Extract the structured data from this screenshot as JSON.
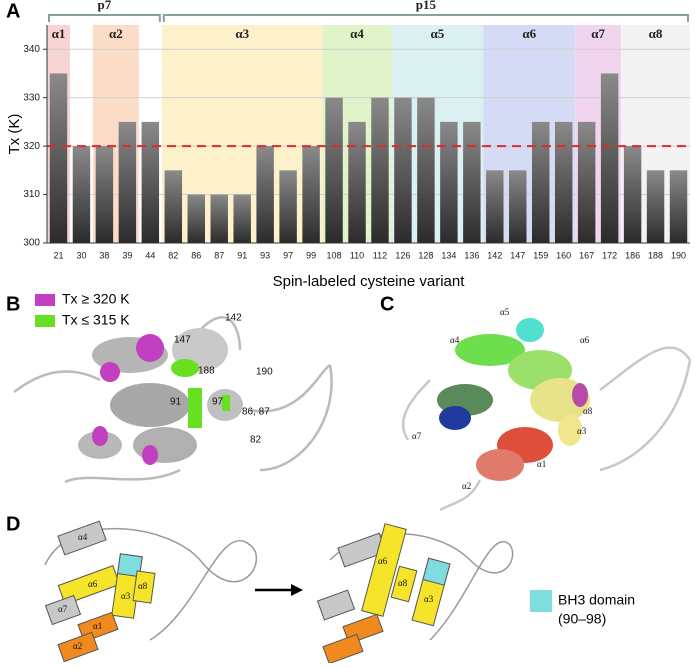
{
  "chart_data": {
    "type": "bar",
    "panel": "A",
    "ylabel": "Tx (K)",
    "xlabel": "Spin-labeled cysteine variant",
    "categories": [
      "21",
      "30",
      "38",
      "39",
      "44",
      "82",
      "86",
      "87",
      "91",
      "93",
      "97",
      "99",
      "108",
      "110",
      "112",
      "126",
      "128",
      "134",
      "136",
      "142",
      "147",
      "159",
      "160",
      "167",
      "172",
      "186",
      "188",
      "190"
    ],
    "values": [
      335,
      320,
      320,
      325,
      325,
      315,
      310,
      310,
      310,
      320,
      315,
      320,
      330,
      325,
      330,
      330,
      330,
      325,
      325,
      315,
      315,
      325,
      325,
      325,
      335,
      320,
      315,
      315
    ],
    "color": "#8a8a8a",
    "ylim": [
      300,
      345
    ],
    "yticks": [
      300,
      310,
      320,
      330,
      340
    ],
    "grid": true,
    "threshold": {
      "value": 320,
      "color": "#e02a2a"
    },
    "regions": [
      {
        "name": "α1",
        "from": "21",
        "to": "21",
        "color": "#f8d3d3"
      },
      {
        "name": "α2",
        "from": "38",
        "to": "39",
        "color": "#fbdcc6"
      },
      {
        "name": "α3",
        "from": "82",
        "to": "99",
        "color": "#fdf1cb"
      },
      {
        "name": "α4",
        "from": "108",
        "to": "112",
        "color": "#e1f4c9"
      },
      {
        "name": "α5",
        "from": "126",
        "to": "136",
        "color": "#dbf0f1"
      },
      {
        "name": "α6",
        "from": "142",
        "to": "160",
        "color": "#d6dbf5"
      },
      {
        "name": "α7",
        "from": "167",
        "to": "172",
        "color": "#f1d5ee"
      },
      {
        "name": "α8",
        "from": "186",
        "to": "190",
        "color": "#f3f3f3"
      }
    ],
    "groups": [
      {
        "name": "p7",
        "from": "21",
        "to": "44"
      },
      {
        "name": "p15",
        "from": "82",
        "to": "190"
      }
    ]
  },
  "panel_b": {
    "label": "B",
    "legend": [
      {
        "label": "Tx ≥ 320 K",
        "color": "#c23fbf"
      },
      {
        "label": "Tx ≤ 315 K",
        "color": "#66e020"
      }
    ],
    "residues": [
      "142",
      "147",
      "188",
      "190",
      "97",
      "91",
      "86, 87",
      "82"
    ]
  },
  "panel_c": {
    "label": "C",
    "helices": [
      "α5",
      "α4",
      "α6",
      "α8",
      "α3",
      "α7",
      "α1",
      "α2"
    ]
  },
  "panel_d": {
    "label": "D",
    "before": [
      "α4",
      "α6",
      "α7",
      "α3",
      "α8",
      "α1",
      "α2"
    ],
    "after": [
      "α6",
      "α8",
      "α3"
    ],
    "bh3_legend": [
      "BH3 domain",
      "(90–98)"
    ]
  }
}
